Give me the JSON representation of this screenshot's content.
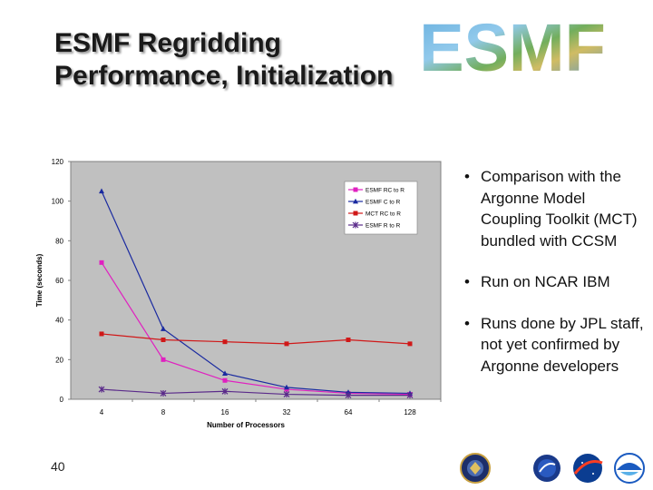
{
  "slide": {
    "title_line1": "ESMF Regridding",
    "title_line2": "Performance, Initialization",
    "logo_text": "ESMF",
    "slide_number": "40",
    "bullets": [
      "Comparison with the Argonne Model Coupling Toolkit (MCT) bundled with CCSM",
      "Run on NCAR IBM",
      "Runs done by JPL staff, not yet confirmed by Argonne developers"
    ],
    "colors": {
      "title": "#1a1a1a",
      "plot_bg": "#c0c0c0"
    },
    "icons": [
      "dod-seal-icon",
      "nasa-seal-icon",
      "nasa-logo-icon",
      "noaa-logo-icon"
    ]
  },
  "chart_data": {
    "type": "line",
    "title": "",
    "xlabel": "Number of Processors",
    "ylabel": "Time (seconds)",
    "categories": [
      "4",
      "8",
      "16",
      "32",
      "64",
      "128"
    ],
    "ylim": [
      0,
      120
    ],
    "yticks": [
      "0",
      "20",
      "40",
      "60",
      "80",
      "100",
      "120"
    ],
    "grid": false,
    "legend_position": "top-right",
    "series": [
      {
        "name": "ESMF RC to R",
        "values": [
          69,
          20,
          9.5,
          5,
          3,
          2.5
        ],
        "color": "#e020c0",
        "marker": "square"
      },
      {
        "name": "ESMF C to R",
        "values": [
          105,
          35.5,
          13,
          6,
          3.5,
          3
        ],
        "color": "#1a2aa0",
        "marker": "triangle"
      },
      {
        "name": "MCT RC to R",
        "values": [
          33,
          30,
          29,
          28,
          30,
          28
        ],
        "color": "#d01818",
        "marker": "square"
      },
      {
        "name": "ESMF R to R",
        "values": [
          5,
          3,
          4,
          2.5,
          2,
          2
        ],
        "color": "#5a2a8a",
        "marker": "star"
      }
    ]
  }
}
